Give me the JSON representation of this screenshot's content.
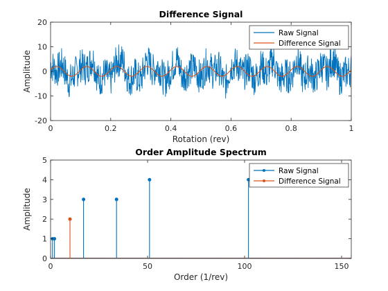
{
  "chart_data": [
    {
      "type": "line",
      "title": "Difference Signal",
      "xlabel": "Rotation (rev)",
      "ylabel": "Amplitude",
      "xlim": [
        0,
        1
      ],
      "ylim": [
        -20,
        20
      ],
      "xticks": [
        0,
        0.2,
        0.4,
        0.6,
        0.8,
        1
      ],
      "xtick_labels": [
        "0",
        "0.2",
        "0.4",
        "0.6",
        "0.8",
        "1"
      ],
      "yticks": [
        -20,
        -10,
        0,
        10,
        20
      ],
      "ytick_labels": [
        "-20",
        "-10",
        "0",
        "10",
        "20"
      ],
      "grid": false,
      "legend_position": "top-right",
      "series": [
        {
          "name": "Raw Signal",
          "color": "#0072BD",
          "description": "noisy signal, approx range -13 to 13",
          "x": [
            0,
            0.02,
            0.04,
            0.06,
            0.08,
            0.1,
            0.12,
            0.14,
            0.16,
            0.18,
            0.2,
            0.22,
            0.24,
            0.26,
            0.28,
            0.3,
            0.32,
            0.34,
            0.36,
            0.38,
            0.4,
            0.42,
            0.44,
            0.46,
            0.48,
            0.5,
            0.52,
            0.54,
            0.56,
            0.58,
            0.6,
            0.62,
            0.64,
            0.66,
            0.68,
            0.7,
            0.72,
            0.74,
            0.76,
            0.78,
            0.8,
            0.82,
            0.84,
            0.86,
            0.88,
            0.9,
            0.92,
            0.94,
            0.96,
            0.98,
            1.0
          ],
          "values": [
            8,
            -6,
            5,
            -9,
            3,
            7,
            -4,
            12,
            -8,
            4,
            -10,
            6,
            9,
            -7,
            3,
            -11,
            8,
            -3,
            10,
            -6,
            2,
            9,
            -12,
            5,
            11,
            -9,
            4,
            -5,
            8,
            -10,
            6,
            3,
            -8,
            9,
            -4,
            7,
            -9,
            11,
            -6,
            2,
            -7,
            10,
            -13,
            6,
            -3,
            8,
            -9,
            12,
            -5,
            4,
            2
          ]
        },
        {
          "name": "Difference Signal",
          "color": "#D95319",
          "description": "sinusoid amplitude ~2, about 10 cycles per rev",
          "amplitude": 2,
          "cycles_per_rev": 10
        }
      ]
    },
    {
      "type": "stem",
      "title": "Order Amplitude Spectrum",
      "xlabel": "Order (1/rev)",
      "ylabel": "Amplitude",
      "xlim": [
        0,
        155
      ],
      "ylim": [
        0,
        5
      ],
      "xticks": [
        0,
        50,
        100,
        150
      ],
      "xtick_labels": [
        "0",
        "50",
        "100",
        "150"
      ],
      "yticks": [
        0,
        1,
        2,
        3,
        4,
        5
      ],
      "ytick_labels": [
        "0",
        "1",
        "2",
        "3",
        "4",
        "5"
      ],
      "grid": false,
      "legend_position": "top-right",
      "series": [
        {
          "name": "Raw Signal",
          "color": "#0072BD",
          "x": [
            1,
            2,
            17,
            34,
            51,
            102
          ],
          "values": [
            1,
            1,
            3,
            3,
            4,
            4
          ]
        },
        {
          "name": "Difference Signal",
          "color": "#D95319",
          "x": [
            10
          ],
          "values": [
            2
          ]
        }
      ]
    }
  ]
}
